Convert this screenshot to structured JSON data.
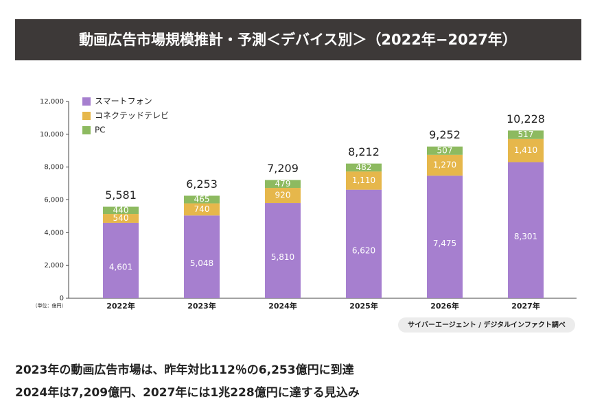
{
  "header": {
    "title": "動画広告市場規模推計・予測＜デバイス別＞（2022年−2027年）"
  },
  "chart_data": {
    "type": "stacked-bar",
    "categories": [
      "2022年",
      "2023年",
      "2024年",
      "2025年",
      "2026年",
      "2027年"
    ],
    "series": [
      {
        "name": "スマートフォン",
        "color": "#a67fcf",
        "values": [
          4601,
          5048,
          5810,
          6620,
          7475,
          8301
        ],
        "value_labels": [
          "4,601",
          "5,048",
          "5,810",
          "6,620",
          "7,475",
          "8,301"
        ]
      },
      {
        "name": "コネクテッドテレビ",
        "color": "#e6b74b",
        "values": [
          540,
          740,
          920,
          1110,
          1270,
          1410
        ],
        "value_labels": [
          "540",
          "740",
          "920",
          "1,110",
          "1,270",
          "1,410"
        ]
      },
      {
        "name": "PC",
        "color": "#8dba60",
        "values": [
          440,
          465,
          479,
          482,
          507,
          517
        ]
      }
    ],
    "totals": {
      "values": [
        5581,
        6253,
        7209,
        8212,
        9252,
        10228
      ],
      "value_labels": [
        "5,581",
        "6,253",
        "7,209",
        "8,212",
        "9,252",
        "10,228"
      ]
    },
    "ylim": [
      0,
      12000
    ],
    "yticks": [
      0,
      {
        "value": 2000,
        "label": "2,000"
      },
      {
        "value": 4000,
        "label": "4,000"
      },
      {
        "value": 6000,
        "label": "6,000"
      },
      {
        "value": 8000,
        "label": "8,000"
      },
      {
        "value": 10000,
        "label": "10,000"
      },
      {
        "value": 12000,
        "label": "12,000"
      }
    ],
    "unit_note": "（単位：億円）",
    "source": "サイバーエージェント / デジタルインファクト調べ"
  },
  "footer": {
    "lines": [
      "2023年の動画広告市場は、昨年対比112％の6,253億円に到達",
      "2024年は7,209億円、2027年には1兆228億円に達する見込み"
    ]
  }
}
